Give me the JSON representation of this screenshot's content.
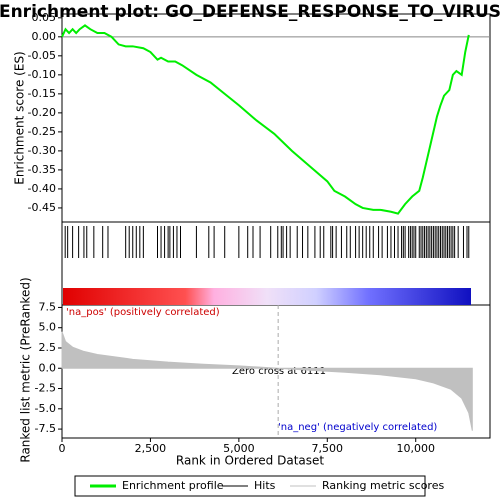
{
  "chart_data": [
    {
      "type": "line",
      "title": "Enrichment plot: GO_DEFENSE_RESPONSE_TO_VIRUS",
      "ylabel": "Enrichment score (ES)",
      "xlim": [
        0,
        12100
      ],
      "ylim": [
        -0.487,
        0.06
      ],
      "yticks": [
        0.05,
        {
          "value": 0,
          "label": "0.00"
        },
        -0.05,
        {
          "value": -0.1,
          "label": "-0.10"
        },
        -0.15,
        {
          "value": -0.2,
          "label": "-0.20"
        },
        -0.25,
        {
          "value": -0.3,
          "label": "-0.30"
        },
        -0.35,
        {
          "value": -0.4,
          "label": "-0.40"
        },
        -0.45
      ],
      "x": [
        0,
        100,
        200,
        300,
        400,
        500,
        650,
        800,
        1000,
        1200,
        1400,
        1600,
        1800,
        2000,
        2300,
        2500,
        2700,
        2800,
        3000,
        3200,
        3400,
        3800,
        4200,
        4600,
        5000,
        5500,
        6000,
        6500,
        7000,
        7500,
        7700,
        8000,
        8300,
        8500,
        8800,
        9000,
        9300,
        9500,
        9700,
        9900,
        10100,
        10200,
        10300,
        10400,
        10500,
        10600,
        10700,
        10800,
        10950,
        11050,
        11150,
        11300,
        11400,
        11500
      ],
      "series": [
        {
          "name": "Enrichment profile",
          "color": "#00ee00",
          "values": [
            0,
            0.02,
            0.01,
            0.02,
            0.01,
            0.02,
            0.03,
            0.02,
            0.01,
            0.01,
            0,
            -0.02,
            -0.025,
            -0.025,
            -0.03,
            -0.04,
            -0.06,
            -0.055,
            -0.065,
            -0.065,
            -0.075,
            -0.1,
            -0.12,
            -0.15,
            -0.18,
            -0.22,
            -0.255,
            -0.3,
            -0.34,
            -0.38,
            -0.405,
            -0.42,
            -0.44,
            -0.45,
            -0.455,
            -0.455,
            -0.46,
            -0.465,
            -0.44,
            -0.42,
            -0.405,
            -0.37,
            -0.33,
            -0.29,
            -0.25,
            -0.21,
            -0.18,
            -0.155,
            -0.14,
            -0.1,
            -0.09,
            -0.1,
            -0.04,
            0.005
          ]
        }
      ]
    },
    {
      "type": "hits",
      "xlim": [
        0,
        12100
      ],
      "series": [
        {
          "name": "Hits",
          "color": "#000000",
          "x": [
            90,
            160,
            300,
            470,
            620,
            700,
            900,
            1150,
            1300,
            1800,
            1900,
            2000,
            2100,
            2200,
            2300,
            2700,
            2800,
            2900,
            3000,
            3050,
            3150,
            3250,
            3350,
            3800,
            4150,
            4300,
            4600,
            5000,
            5250,
            5400,
            5600,
            5900,
            6100,
            6200,
            6250,
            6350,
            6450,
            6650,
            6800,
            6950,
            7150,
            7300,
            7400,
            7600,
            7650,
            7750,
            7900,
            8050,
            8150,
            8300,
            8400,
            8500,
            8600,
            8700,
            8800,
            8950,
            9050,
            9200,
            9300,
            9400,
            9500,
            9600,
            9650,
            9700,
            9800,
            9850,
            9900,
            9950,
            10000,
            10100,
            10150,
            10200,
            10250,
            10300,
            10350,
            10400,
            10450,
            10500,
            10550,
            10600,
            10650,
            10700,
            10750,
            10800,
            10850,
            10900,
            10950,
            11000,
            11050,
            11100,
            11200,
            11350,
            11450,
            11500
          ]
        }
      ]
    },
    {
      "type": "area",
      "xlabel": "Rank in Ordered Dataset",
      "ylabel": "Ranked list metric (PreRanked)",
      "xlim": [
        0,
        12100
      ],
      "xticks": [
        0,
        {
          "value": 2500,
          "label": "2,500"
        },
        {
          "value": 5000,
          "label": "5,000"
        },
        {
          "value": 7500,
          "label": "7,500"
        },
        {
          "value": 10000,
          "label": "10,000"
        }
      ],
      "ylim": [
        -8.6,
        7.8
      ],
      "yticks": [
        7.5,
        {
          "value": 5,
          "label": "5.0"
        },
        2.5,
        {
          "value": 0,
          "label": "0.0"
        },
        -2.5,
        {
          "value": -5,
          "label": "-5.0"
        },
        -7.5
      ],
      "x": [
        0,
        100,
        300,
        600,
        1000,
        2000,
        3000,
        4000,
        5000,
        6111,
        7000,
        8000,
        9000,
        10000,
        10500,
        11000,
        11300,
        11500,
        11600
      ],
      "series": [
        {
          "name": "Ranking metric scores",
          "color": "#c0c0c0",
          "values": [
            4.5,
            3.3,
            2.6,
            2.1,
            1.7,
            1.1,
            0.75,
            0.5,
            0.3,
            0,
            -0.25,
            -0.5,
            -0.8,
            -1.3,
            -1.8,
            -2.6,
            -3.7,
            -5.5,
            -7.7
          ]
        }
      ],
      "zero_cross": 6111,
      "zero_label": "Zero cross at 6111",
      "pos_label": "'na_pos' (positively correlated)",
      "neg_label": "'na_neg' (negatively correlated)"
    }
  ]
}
